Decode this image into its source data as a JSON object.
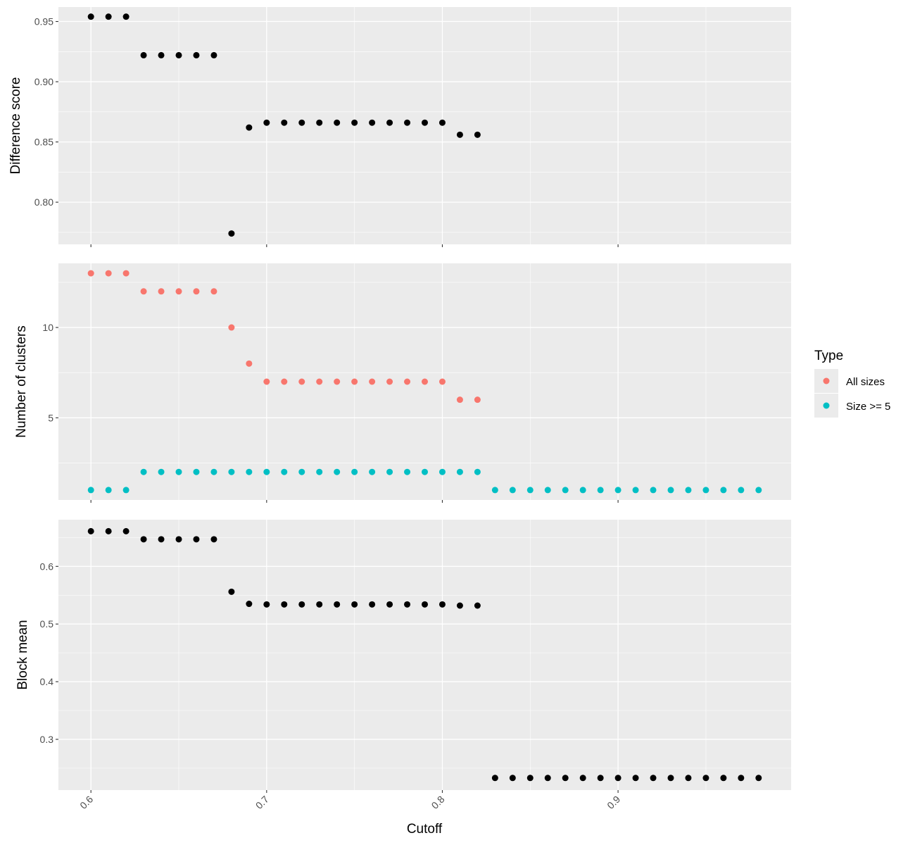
{
  "chart_data": {
    "type": "scatter",
    "x_axis": {
      "label": "Cutoff",
      "ticks": [
        0.6,
        0.7,
        0.8,
        0.9
      ],
      "tick_labels": [
        "0.6",
        "0.7",
        "0.8",
        "0.9"
      ],
      "xlim": [
        0.5815,
        0.9985
      ],
      "tick_label_rotation": 45
    },
    "background_color": "#ebebeb",
    "grid": true,
    "grid_color": "#ffffff",
    "panels": [
      {
        "name": "difference-score",
        "ylabel": "Difference score",
        "ylim": [
          0.765,
          0.962
        ],
        "yticks": [
          0.8,
          0.85,
          0.9,
          0.95
        ],
        "ytick_labels": [
          "0.80",
          "0.85",
          "0.90",
          "0.95"
        ],
        "series": [
          {
            "color": "#000000",
            "x": [
              0.6,
              0.61,
              0.62,
              0.63,
              0.64,
              0.65,
              0.66,
              0.67,
              0.68,
              0.69,
              0.7,
              0.71,
              0.72,
              0.73,
              0.74,
              0.75,
              0.76,
              0.77,
              0.78,
              0.79,
              0.8,
              0.81,
              0.82
            ],
            "y": [
              0.954,
              0.954,
              0.954,
              0.922,
              0.922,
              0.922,
              0.922,
              0.922,
              0.774,
              0.862,
              0.866,
              0.866,
              0.866,
              0.866,
              0.866,
              0.866,
              0.866,
              0.866,
              0.866,
              0.866,
              0.866,
              0.856,
              0.856
            ]
          }
        ]
      },
      {
        "name": "number-of-clusters",
        "ylabel": "Number of clusters",
        "ylim": [
          0.45,
          13.55
        ],
        "yticks": [
          5,
          10
        ],
        "ytick_labels": [
          "5",
          "10"
        ],
        "series": [
          {
            "name": "All sizes",
            "color": "#f8766d",
            "x": [
              0.6,
              0.61,
              0.62,
              0.63,
              0.64,
              0.65,
              0.66,
              0.67,
              0.68,
              0.69,
              0.7,
              0.71,
              0.72,
              0.73,
              0.74,
              0.75,
              0.76,
              0.77,
              0.78,
              0.79,
              0.8,
              0.81,
              0.82
            ],
            "y": [
              13,
              13,
              13,
              12,
              12,
              12,
              12,
              12,
              10,
              8,
              7,
              7,
              7,
              7,
              7,
              7,
              7,
              7,
              7,
              7,
              7,
              6,
              6
            ]
          },
          {
            "name": "Size >= 5",
            "color": "#00bfc4",
            "x": [
              0.6,
              0.61,
              0.62,
              0.63,
              0.64,
              0.65,
              0.66,
              0.67,
              0.68,
              0.69,
              0.7,
              0.71,
              0.72,
              0.73,
              0.74,
              0.75,
              0.76,
              0.77,
              0.78,
              0.79,
              0.8,
              0.81,
              0.82,
              0.83,
              0.84,
              0.85,
              0.86,
              0.87,
              0.88,
              0.89,
              0.9,
              0.91,
              0.92,
              0.93,
              0.94,
              0.95,
              0.96,
              0.97,
              0.98
            ],
            "y": [
              1,
              1,
              1,
              2,
              2,
              2,
              2,
              2,
              2,
              2,
              2,
              2,
              2,
              2,
              2,
              2,
              2,
              2,
              2,
              2,
              2,
              2,
              2,
              1,
              1,
              1,
              1,
              1,
              1,
              1,
              1,
              1,
              1,
              1,
              1,
              1,
              1,
              1,
              1
            ]
          }
        ]
      },
      {
        "name": "block-mean",
        "ylabel": "Block mean",
        "ylim": [
          0.212,
          0.681
        ],
        "yticks": [
          0.3,
          0.4,
          0.5,
          0.6
        ],
        "ytick_labels": [
          "0.3",
          "0.4",
          "0.5",
          "0.6"
        ],
        "series": [
          {
            "color": "#000000",
            "x": [
              0.6,
              0.61,
              0.62,
              0.63,
              0.64,
              0.65,
              0.66,
              0.67,
              0.68,
              0.69,
              0.7,
              0.71,
              0.72,
              0.73,
              0.74,
              0.75,
              0.76,
              0.77,
              0.78,
              0.79,
              0.8,
              0.81,
              0.82,
              0.83,
              0.84,
              0.85,
              0.86,
              0.87,
              0.88,
              0.89,
              0.9,
              0.91,
              0.92,
              0.93,
              0.94,
              0.95,
              0.96,
              0.97,
              0.98
            ],
            "y": [
              0.661,
              0.661,
              0.661,
              0.647,
              0.647,
              0.647,
              0.647,
              0.647,
              0.556,
              0.535,
              0.534,
              0.534,
              0.534,
              0.534,
              0.534,
              0.534,
              0.534,
              0.534,
              0.534,
              0.534,
              0.534,
              0.532,
              0.532,
              0.233,
              0.233,
              0.233,
              0.233,
              0.233,
              0.233,
              0.233,
              0.233,
              0.233,
              0.233,
              0.233,
              0.233,
              0.233,
              0.233,
              0.233,
              0.233
            ]
          }
        ]
      }
    ],
    "legend": {
      "title": "Type",
      "placement": "right",
      "entries": [
        {
          "label": "All sizes",
          "color": "#f8766d"
        },
        {
          "label": "Size >= 5",
          "color": "#00bfc4"
        }
      ]
    }
  }
}
